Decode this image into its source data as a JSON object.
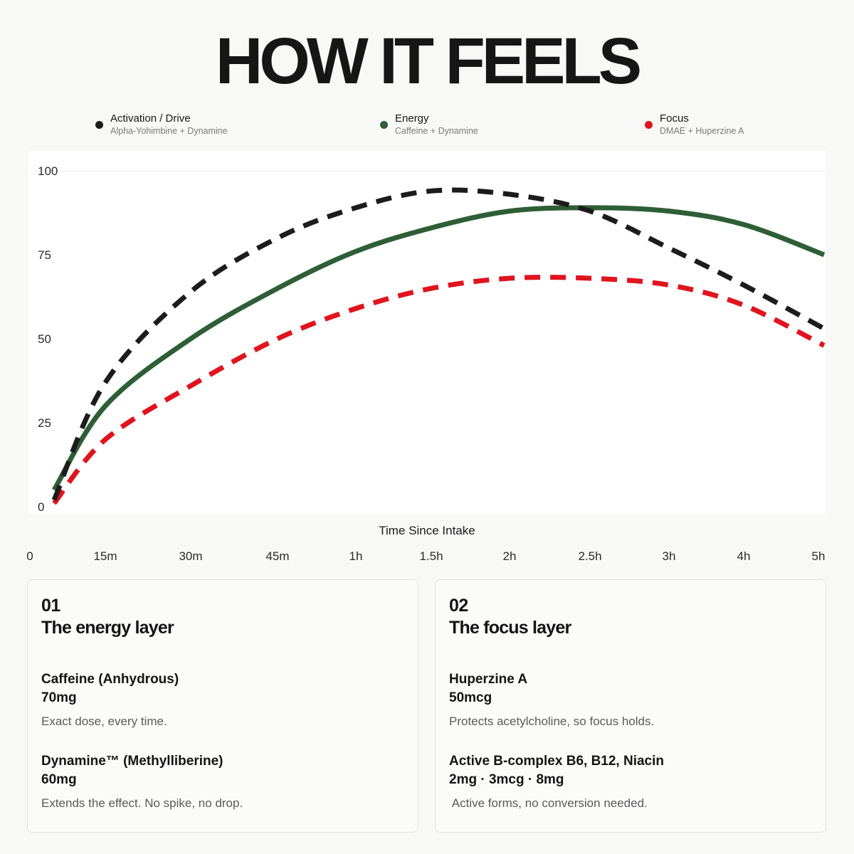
{
  "header": {
    "title": "HOW IT FEELS"
  },
  "legend": [
    {
      "name": "Activation / Drive",
      "sub": "Alpha-Yohimbine + Dynamine",
      "color": "#1c1c1c"
    },
    {
      "name": "Energy",
      "sub": "Caffeine + Dynamine",
      "color": "#2e5e36"
    },
    {
      "name": "Focus",
      "sub": "DMAE + Huperzine A",
      "color": "#e0141e"
    }
  ],
  "chart_data": {
    "type": "line",
    "title": "",
    "xlabel": "Time Since Intake",
    "ylabel": "",
    "x_tick_labels": [
      "0",
      "15m",
      "30m",
      "45m",
      "1h",
      "1.5h",
      "2h",
      "2.5h",
      "3h",
      "4h",
      "5h"
    ],
    "y_ticks": [
      0,
      25,
      50,
      75,
      100
    ],
    "ylim": [
      0,
      100
    ],
    "grid": "horizontal at 100 only",
    "series": [
      {
        "name": "Activation / Drive",
        "style": "dashed",
        "color": "#1c1c1c",
        "x": [
          "0",
          "15m",
          "30m",
          "45m",
          "1h",
          "1.5h",
          "2h",
          "2.5h",
          "3h",
          "4h",
          "5h"
        ],
        "values": [
          2,
          37,
          64,
          80,
          89,
          94,
          93,
          88,
          77,
          66,
          53
        ]
      },
      {
        "name": "Energy",
        "style": "solid",
        "color": "#2e5e36",
        "x": [
          "0",
          "15m",
          "30m",
          "45m",
          "1h",
          "1.5h",
          "2h",
          "2.5h",
          "3h",
          "4h",
          "5h"
        ],
        "values": [
          5,
          30,
          50,
          65,
          76,
          83,
          88,
          89,
          88,
          84,
          75
        ]
      },
      {
        "name": "Focus",
        "style": "dashed",
        "color": "#e0141e",
        "x": [
          "0",
          "15m",
          "30m",
          "45m",
          "1h",
          "1.5h",
          "2h",
          "2.5h",
          "3h",
          "4h",
          "5h"
        ],
        "values": [
          1,
          20,
          36,
          50,
          59,
          65,
          68,
          68,
          66,
          60,
          48
        ]
      }
    ]
  },
  "cards": [
    {
      "number": "01",
      "title": "The energy layer",
      "ingredients": [
        {
          "name": "Caffeine (Anhydrous)",
          "dose": "70mg",
          "desc": "Exact dose, every time."
        },
        {
          "name": "Dynamine™ (Methylliberine)",
          "dose": "60mg",
          "desc": "Extends the effect. No spike, no drop."
        }
      ]
    },
    {
      "number": "02",
      "title": "The focus layer",
      "ingredients": [
        {
          "name": "Huperzine A",
          "dose": "50mcg",
          "desc": "Protects acetylcholine, so focus holds."
        },
        {
          "name": "Active B-complex B6, B12, Niacin",
          "dose": "2mg · 3mcg · 8mg",
          "desc": " Active forms, no conversion needed."
        }
      ]
    }
  ]
}
